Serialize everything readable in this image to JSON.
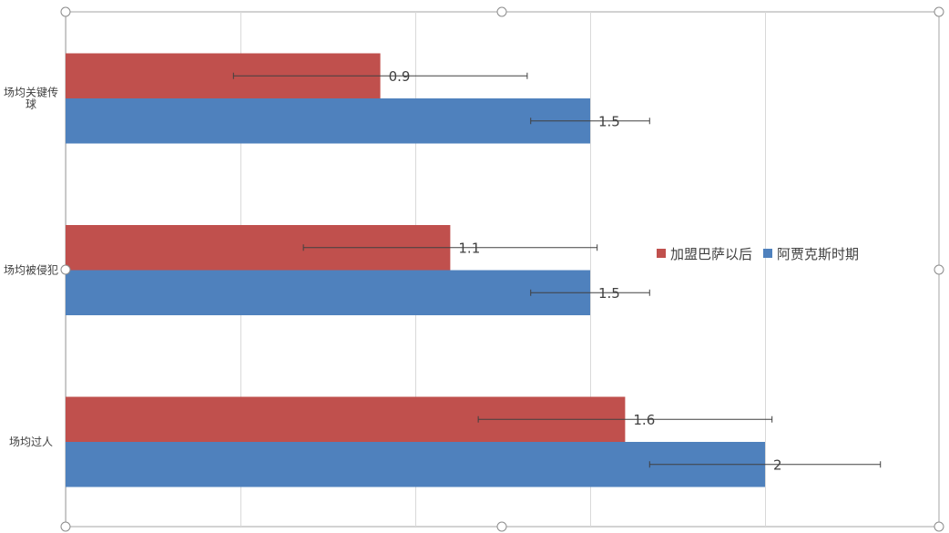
{
  "chart_data": {
    "type": "bar",
    "orientation": "horizontal",
    "categories": [
      "场均关键传球",
      "场均被侵犯",
      "场均过人"
    ],
    "series": [
      {
        "name": "加盟巴萨以后",
        "color": "#C0504D",
        "values": [
          0.9,
          1.1,
          1.6
        ],
        "error": [
          0.42,
          0.42,
          0.42
        ]
      },
      {
        "name": "阿贾克斯时期",
        "color": "#4F81BD",
        "values": [
          1.5,
          1.5,
          2
        ],
        "error": [
          0.17,
          0.17,
          0.33
        ]
      }
    ],
    "xlim": [
      0,
      2.5
    ],
    "grid": true,
    "legend_position": "right",
    "data_labels": true
  }
}
